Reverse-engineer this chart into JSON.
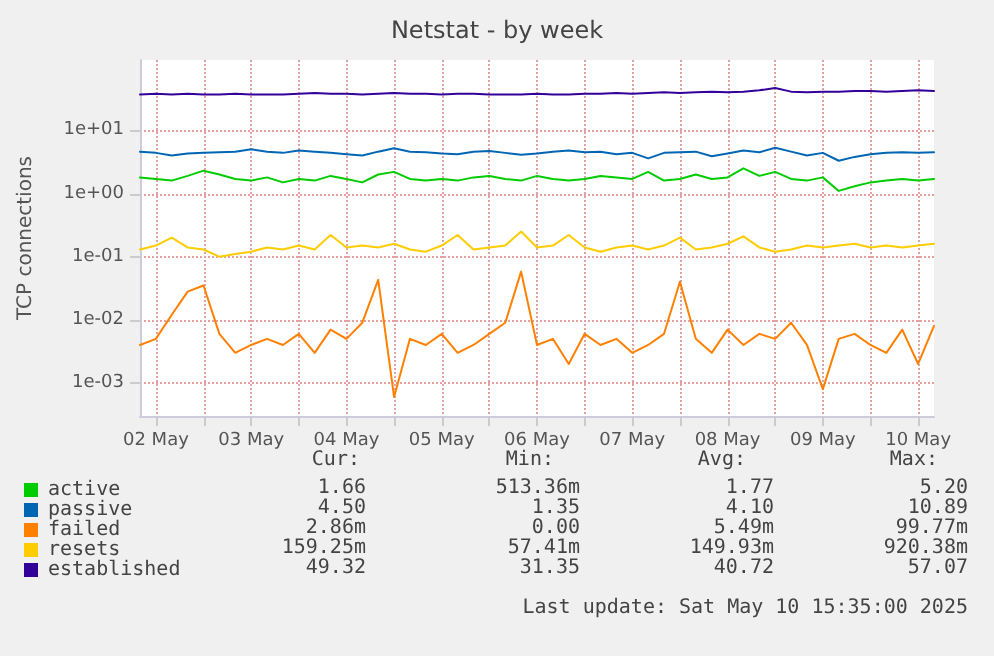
{
  "chart_data": {
    "type": "line",
    "title": "Netstat - by week",
    "ylabel": "TCP connections",
    "log": "y",
    "grid": true,
    "legend": "bottom left",
    "marker": "none",
    "line_style": "solid",
    "xlim": [
      "2025-05-02T08:00",
      "2025-05-10T16:00"
    ],
    "xticks": [
      {
        "value": "2025-05-02T12:00",
        "label": "02 May"
      },
      {
        "value": "2025-05-03T00:00",
        "label": null
      },
      {
        "value": "2025-05-03T12:00",
        "label": "03 May"
      },
      {
        "value": "2025-05-04T00:00",
        "label": null
      },
      {
        "value": "2025-05-04T12:00",
        "label": "04 May"
      },
      {
        "value": "2025-05-05T00:00",
        "label": null
      },
      {
        "value": "2025-05-05T12:00",
        "label": "05 May"
      },
      {
        "value": "2025-05-06T00:00",
        "label": null
      },
      {
        "value": "2025-05-06T12:00",
        "label": "06 May"
      },
      {
        "value": "2025-05-07T00:00",
        "label": null
      },
      {
        "value": "2025-05-07T12:00",
        "label": "07 May"
      },
      {
        "value": "2025-05-08T00:00",
        "label": null
      },
      {
        "value": "2025-05-08T12:00",
        "label": "08 May"
      },
      {
        "value": "2025-05-09T00:00",
        "label": null
      },
      {
        "value": "2025-05-09T12:00",
        "label": "09 May"
      },
      {
        "value": "2025-05-10T00:00",
        "label": null
      },
      {
        "value": "2025-05-10T12:00",
        "label": "10 May"
      }
    ],
    "ylim": [
      0.0003,
      130
    ],
    "yticks": [
      {
        "value": 0.001,
        "label": "1e-03"
      },
      {
        "value": 0.01,
        "label": "1e-02"
      },
      {
        "value": 0.1,
        "label": "1e-01"
      },
      {
        "value": 1,
        "label": "1e+00"
      },
      {
        "value": 10,
        "label": "1e+01"
      }
    ],
    "x": [
      "2025-05-02T08:00",
      "2025-05-02T12:00",
      "2025-05-02T16:00",
      "2025-05-02T20:00",
      "2025-05-03T00:00",
      "2025-05-03T04:00",
      "2025-05-03T08:00",
      "2025-05-03T12:00",
      "2025-05-03T16:00",
      "2025-05-03T20:00",
      "2025-05-04T00:00",
      "2025-05-04T04:00",
      "2025-05-04T08:00",
      "2025-05-04T12:00",
      "2025-05-04T16:00",
      "2025-05-04T20:00",
      "2025-05-05T00:00",
      "2025-05-05T04:00",
      "2025-05-05T08:00",
      "2025-05-05T12:00",
      "2025-05-05T16:00",
      "2025-05-05T20:00",
      "2025-05-06T00:00",
      "2025-05-06T04:00",
      "2025-05-06T08:00",
      "2025-05-06T12:00",
      "2025-05-06T16:00",
      "2025-05-06T20:00",
      "2025-05-07T00:00",
      "2025-05-07T04:00",
      "2025-05-07T08:00",
      "2025-05-07T12:00",
      "2025-05-07T16:00",
      "2025-05-07T20:00",
      "2025-05-08T00:00",
      "2025-05-08T04:00",
      "2025-05-08T08:00",
      "2025-05-08T12:00",
      "2025-05-08T16:00",
      "2025-05-08T20:00",
      "2025-05-09T00:00",
      "2025-05-09T04:00",
      "2025-05-09T08:00",
      "2025-05-09T12:00",
      "2025-05-09T16:00",
      "2025-05-09T20:00",
      "2025-05-10T00:00",
      "2025-05-10T04:00",
      "2025-05-10T08:00",
      "2025-05-10T12:00",
      "2025-05-10T16:00"
    ],
    "series": [
      {
        "name": "active",
        "color": "#00cc00",
        "values": [
          1.8,
          1.7,
          1.6,
          1.9,
          2.3,
          2.0,
          1.7,
          1.6,
          1.8,
          1.5,
          1.7,
          1.6,
          1.9,
          1.7,
          1.5,
          2.0,
          2.2,
          1.7,
          1.6,
          1.7,
          1.6,
          1.8,
          1.9,
          1.7,
          1.6,
          1.9,
          1.7,
          1.6,
          1.7,
          1.9,
          1.8,
          1.7,
          2.2,
          1.6,
          1.7,
          2.0,
          1.7,
          1.8,
          2.5,
          1.9,
          2.2,
          1.7,
          1.6,
          1.8,
          1.1,
          1.3,
          1.5,
          1.6,
          1.7,
          1.6,
          1.7
        ]
      },
      {
        "name": "passive",
        "color": "#0066b3",
        "values": [
          4.6,
          4.4,
          4.0,
          4.3,
          4.4,
          4.5,
          4.6,
          5.0,
          4.6,
          4.4,
          4.8,
          4.6,
          4.4,
          4.2,
          4.0,
          4.6,
          5.2,
          4.6,
          4.5,
          4.3,
          4.2,
          4.6,
          4.7,
          4.4,
          4.1,
          4.3,
          4.6,
          4.8,
          4.5,
          4.6,
          4.2,
          4.4,
          3.6,
          4.4,
          4.5,
          4.6,
          3.9,
          4.3,
          4.8,
          4.5,
          5.3,
          4.6,
          4.0,
          4.4,
          3.3,
          3.8,
          4.2,
          4.4,
          4.5,
          4.4,
          4.5
        ]
      },
      {
        "name": "failed",
        "color": "#ff8000",
        "values": [
          0.004,
          0.005,
          0.012,
          0.028,
          0.035,
          0.006,
          0.003,
          0.004,
          0.005,
          0.004,
          0.006,
          0.003,
          0.007,
          0.005,
          0.009,
          0.043,
          0.0006,
          0.005,
          0.004,
          0.006,
          0.003,
          0.004,
          0.006,
          0.009,
          0.058,
          0.004,
          0.005,
          0.002,
          0.006,
          0.004,
          0.005,
          0.003,
          0.004,
          0.006,
          0.04,
          0.005,
          0.003,
          0.007,
          0.004,
          0.006,
          0.005,
          0.009,
          0.004,
          0.0008,
          0.005,
          0.006,
          0.004,
          0.003,
          0.007,
          0.002,
          0.008
        ]
      },
      {
        "name": "resets",
        "color": "#ffcc00",
        "values": [
          0.13,
          0.15,
          0.2,
          0.14,
          0.13,
          0.1,
          0.11,
          0.12,
          0.14,
          0.13,
          0.15,
          0.13,
          0.22,
          0.14,
          0.15,
          0.14,
          0.16,
          0.13,
          0.12,
          0.15,
          0.22,
          0.13,
          0.14,
          0.15,
          0.25,
          0.14,
          0.15,
          0.22,
          0.14,
          0.12,
          0.14,
          0.15,
          0.13,
          0.15,
          0.2,
          0.13,
          0.14,
          0.16,
          0.21,
          0.14,
          0.12,
          0.13,
          0.15,
          0.14,
          0.15,
          0.16,
          0.14,
          0.15,
          0.14,
          0.15,
          0.16
        ]
      },
      {
        "name": "established",
        "color": "#330099",
        "values": [
          37,
          38,
          37,
          38,
          37,
          37,
          38,
          37,
          37,
          37,
          38,
          39,
          38,
          38,
          37,
          38,
          39,
          38,
          38,
          37,
          38,
          38,
          37,
          37,
          37,
          38,
          37,
          37,
          38,
          38,
          39,
          38,
          39,
          40,
          39,
          40,
          41,
          40,
          41,
          43,
          47,
          41,
          40,
          41,
          41,
          42,
          42,
          41,
          42,
          43,
          42
        ]
      }
    ],
    "annotations": [
      "Cur:",
      "Min:",
      "Avg:",
      "Max:",
      "1.66",
      "513.36m",
      "1.77",
      "5.20",
      "4.50",
      "1.35",
      "4.10",
      "10.89",
      "2.86m",
      "0.00",
      "5.49m",
      "99.77m",
      "159.25m",
      "57.41m",
      "149.93m",
      "920.38m",
      "49.32",
      "31.35",
      "40.72",
      "57.07",
      "Last update: Sat May 10 15:35:00 2025"
    ]
  }
}
